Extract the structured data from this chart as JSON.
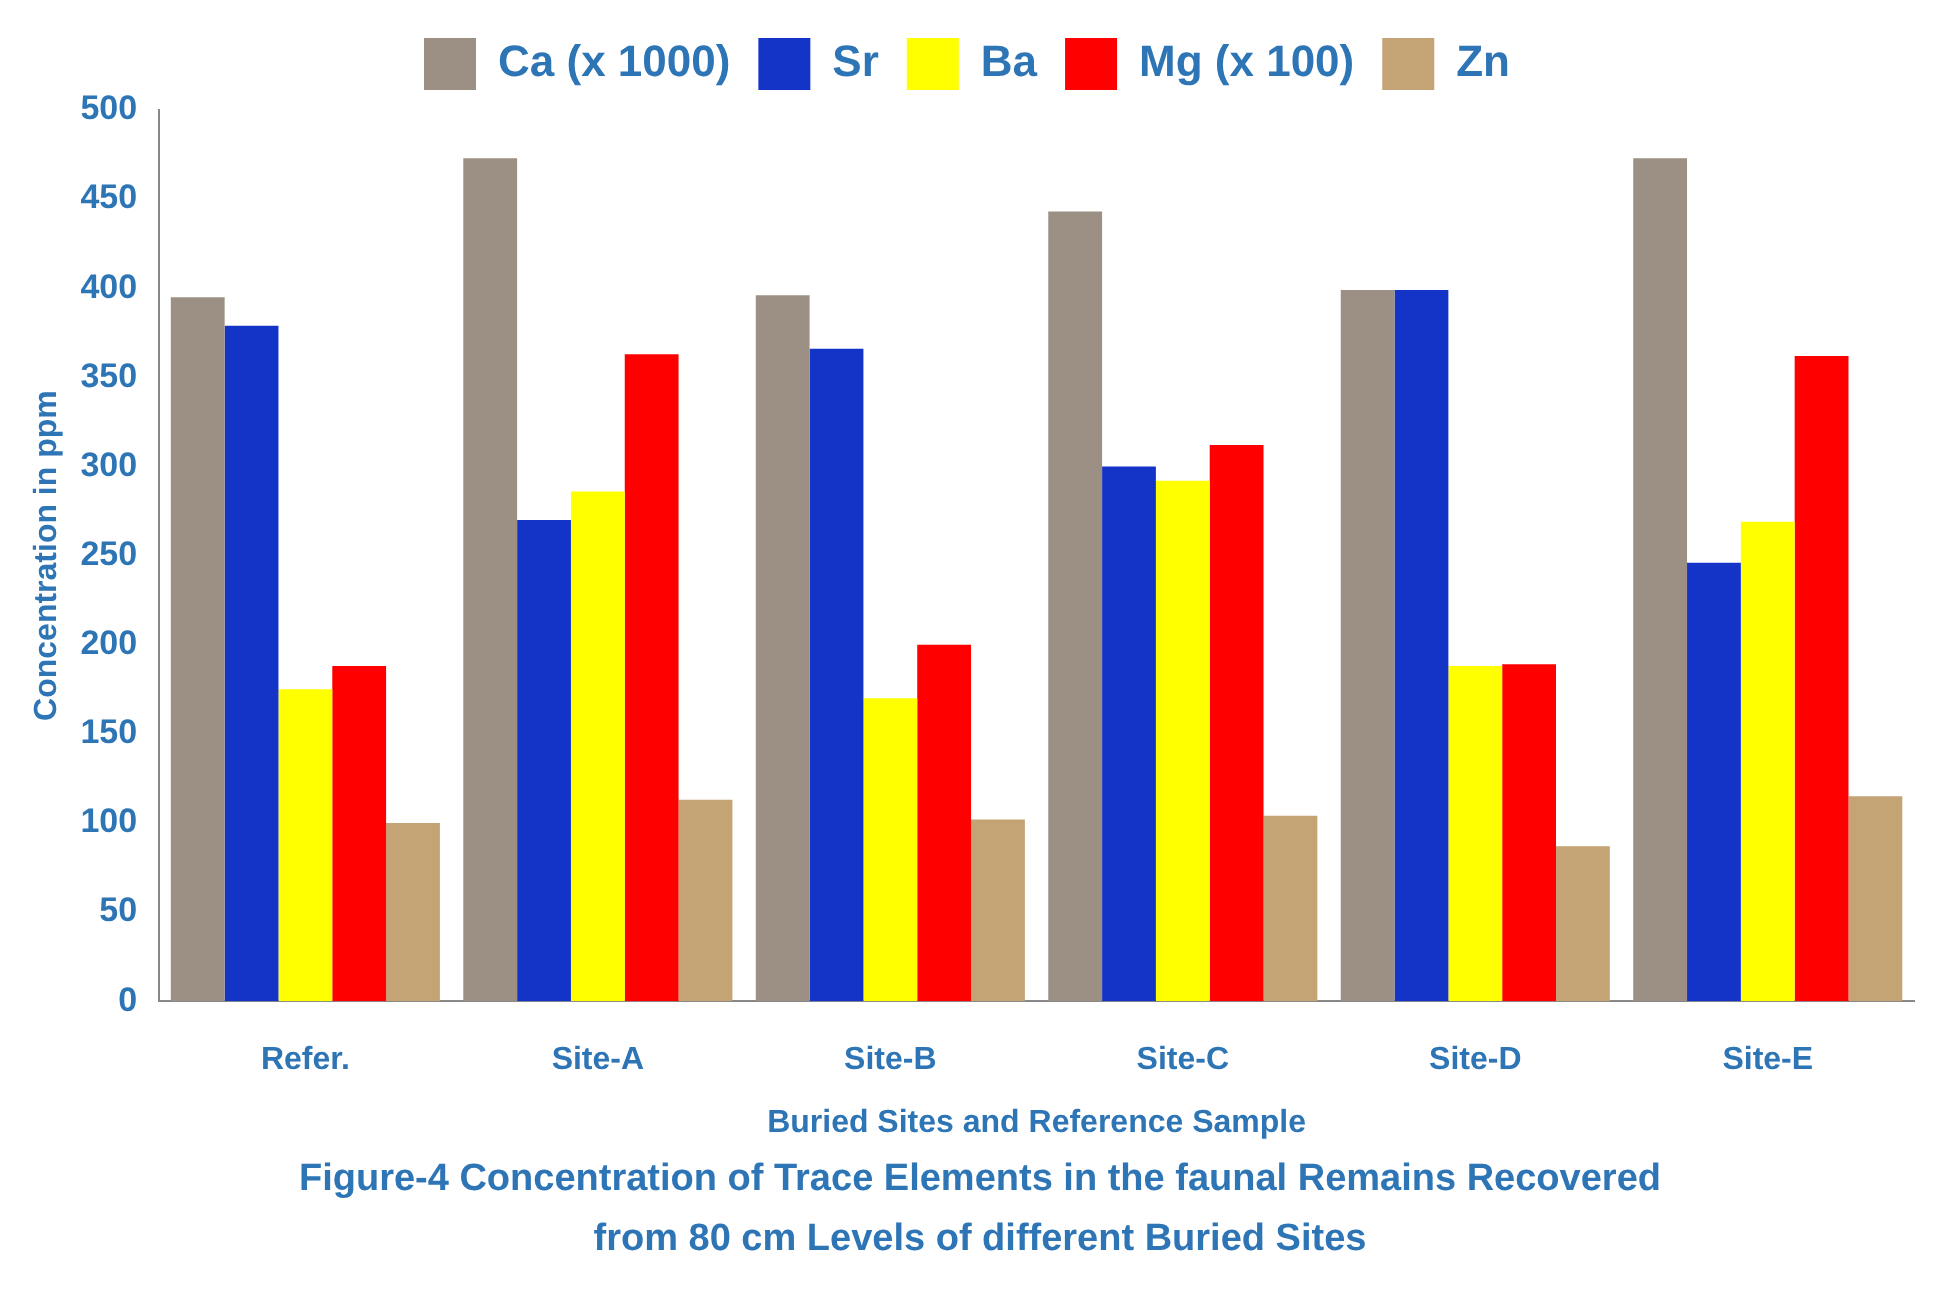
{
  "chart_data": {
    "type": "bar",
    "title": "Figure-4 Concentration of Trace Elements in the faunal Remains Recovered from 80 cm Levels of different Buried Sites",
    "xlabel": "Buried Sites and Reference Sample",
    "ylabel": "Concentration in ppm",
    "categories": [
      "Refer.",
      "Site-A",
      "Site-B",
      "Site-C",
      "Site-D",
      "Site-E"
    ],
    "series": [
      {
        "name": "Ca (x 1000)",
        "color": "#9b9083",
        "values": [
          395,
          473,
          396,
          443,
          399,
          473
        ]
      },
      {
        "name": "Sr",
        "color": "#1434c8",
        "values": [
          379,
          270,
          366,
          300,
          399,
          246
        ]
      },
      {
        "name": "Ba",
        "color": "#ffff00",
        "values": [
          175,
          286,
          170,
          292,
          188,
          269
        ]
      },
      {
        "name": "Mg (x 100)",
        "color": "#ff0000",
        "values": [
          188,
          363,
          200,
          312,
          189,
          362
        ]
      },
      {
        "name": "Zn",
        "color": "#c4a374",
        "values": [
          100,
          113,
          102,
          104,
          87,
          115
        ]
      }
    ],
    "ylim": [
      0,
      500
    ],
    "yticks": [
      0,
      50,
      100,
      150,
      200,
      250,
      300,
      350,
      400,
      450,
      500
    ],
    "grid": false,
    "legend": "top"
  }
}
